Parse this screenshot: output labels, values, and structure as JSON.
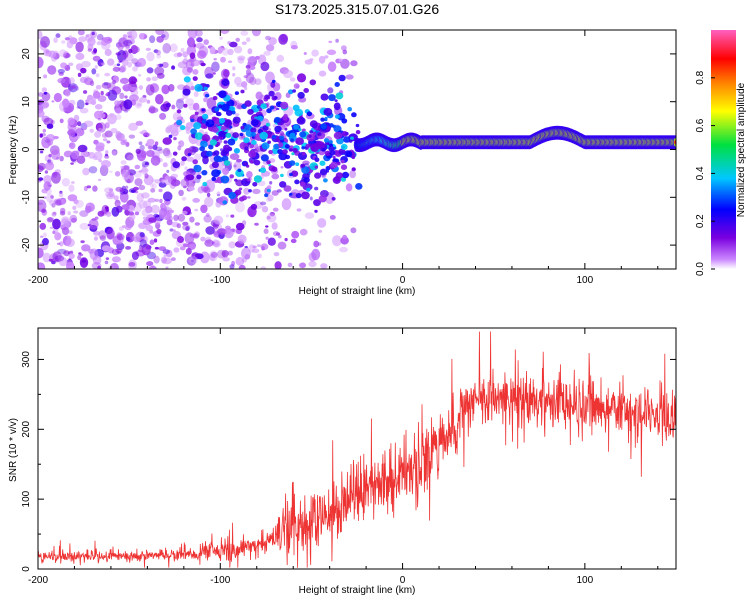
{
  "title": "S173.2025.315.07.01.G26",
  "chart_data": [
    {
      "type": "heatmap",
      "name": "spectrogram",
      "xlabel": "Height of straight line (km)",
      "ylabel": "Frequency (Hz)",
      "xlim": [
        -200,
        150
      ],
      "ylim": [
        -25,
        25
      ],
      "xticks": [
        -200,
        -100,
        0,
        100
      ],
      "yticks": [
        -20,
        -10,
        0,
        10,
        20
      ],
      "colorbar": {
        "label": "Normalized spectral amplitude",
        "range": [
          0.0,
          1.0
        ],
        "ticks": [
          0.0,
          0.2,
          0.4,
          0.6,
          0.8
        ],
        "colors": [
          "#ffffff",
          "#cc88ff",
          "#7a00e0",
          "#0000ff",
          "#00c8ff",
          "#00e040",
          "#ffff00",
          "#ff8000",
          "#ff0000",
          "#ff60c0"
        ]
      },
      "description_values": {
        "noise_region_km": [
          -200,
          -110
        ],
        "transition_region_km": [
          -110,
          -25
        ],
        "signal_line_km": [
          -25,
          150
        ],
        "signal_frequency_hz": 1.5,
        "signal_bump_km": [
          70,
          100
        ],
        "signal_bump_frequency_hz": 3.5
      }
    },
    {
      "type": "line",
      "name": "snr",
      "xlabel": "Height of straight line (km)",
      "ylabel": "SNR (10 * v/v)",
      "xlim": [
        -200,
        150
      ],
      "ylim": [
        0,
        345
      ],
      "xticks": [
        -200,
        -100,
        0,
        100
      ],
      "yticks": [
        0,
        100,
        200,
        300
      ],
      "color": "#ee3333",
      "trend": {
        "x": [
          -200,
          -160,
          -120,
          -100,
          -80,
          -60,
          -40,
          -30,
          -20,
          -10,
          0,
          10,
          20,
          30,
          40,
          60,
          80,
          100,
          120,
          150
        ],
        "y": [
          18,
          18,
          20,
          25,
          35,
          55,
          80,
          100,
          120,
          125,
          130,
          150,
          180,
          215,
          240,
          245,
          240,
          232,
          225,
          215
        ]
      }
    }
  ]
}
